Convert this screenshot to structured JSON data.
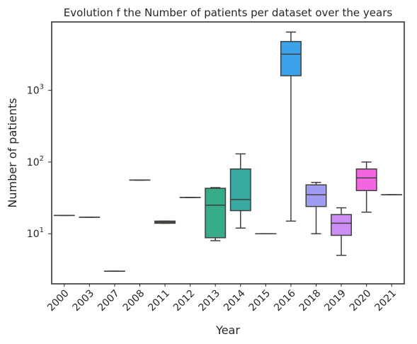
{
  "chart_data": {
    "type": "box",
    "title": "Evolution f the Number of patients per dataset over the years",
    "xlabel": "Year",
    "ylabel": "Number of patients",
    "yscale": "log",
    "ylim": [
      2,
      9000
    ],
    "y_ticks": [
      {
        "value": 10,
        "base": "10",
        "exp": "1"
      },
      {
        "value": 100,
        "base": "10",
        "exp": "2"
      },
      {
        "value": 1000,
        "base": "10",
        "exp": "3"
      }
    ],
    "grid": false,
    "legend": "none",
    "categories": [
      "2000",
      "2003",
      "2007",
      "2008",
      "2011",
      "2012",
      "2013",
      "2014",
      "2015",
      "2016",
      "2018",
      "2019",
      "2020",
      "2021"
    ],
    "boxes": [
      {
        "year": "2000",
        "min": 18,
        "q1": 18,
        "median": 18,
        "q3": 18,
        "max": 18,
        "color": "#f77189"
      },
      {
        "year": "2003",
        "min": 17,
        "q1": 17,
        "median": 17,
        "q3": 17,
        "max": 17,
        "color": "#e98932"
      },
      {
        "year": "2007",
        "min": 3,
        "q1": 3,
        "median": 3,
        "q3": 3,
        "max": 3,
        "color": "#c39532"
      },
      {
        "year": "2008",
        "min": 56,
        "q1": 56,
        "median": 56,
        "q3": 56,
        "max": 56,
        "color": "#a19f32"
      },
      {
        "year": "2011",
        "min": 14,
        "q1": 14,
        "median": 14.5,
        "q3": 15,
        "max": 15,
        "color": "#6aab32"
      },
      {
        "year": "2012",
        "min": 32,
        "q1": 32,
        "median": 32,
        "q3": 32,
        "max": 32,
        "color": "#34af5a"
      },
      {
        "year": "2013",
        "min": 8,
        "q1": 8.8,
        "median": 25,
        "q3": 43,
        "max": 44,
        "color": "#36ac88"
      },
      {
        "year": "2014",
        "min": 12,
        "q1": 21,
        "median": 30,
        "q3": 80,
        "max": 130,
        "color": "#38a9a0"
      },
      {
        "year": "2015",
        "min": 10,
        "q1": 10,
        "median": 10,
        "q3": 10,
        "max": 10,
        "color": "#3aa6b6"
      },
      {
        "year": "2016",
        "min": 15,
        "q1": 1600,
        "median": 3200,
        "q3": 4800,
        "max": 6500,
        "color": "#3ba3ec"
      },
      {
        "year": "2018",
        "min": 10,
        "q1": 24,
        "median": 35,
        "q3": 48,
        "max": 52,
        "color": "#a09cf4"
      },
      {
        "year": "2019",
        "min": 5,
        "q1": 9.5,
        "median": 14,
        "q3": 18.5,
        "max": 23,
        "color": "#cc8ef4"
      },
      {
        "year": "2020",
        "min": 20,
        "q1": 40,
        "median": 60,
        "q3": 80,
        "max": 100,
        "color": "#f466e0"
      },
      {
        "year": "2021",
        "min": 35,
        "q1": 35,
        "median": 35,
        "q3": 35,
        "max": 35,
        "color": "#f56eb4"
      }
    ]
  }
}
